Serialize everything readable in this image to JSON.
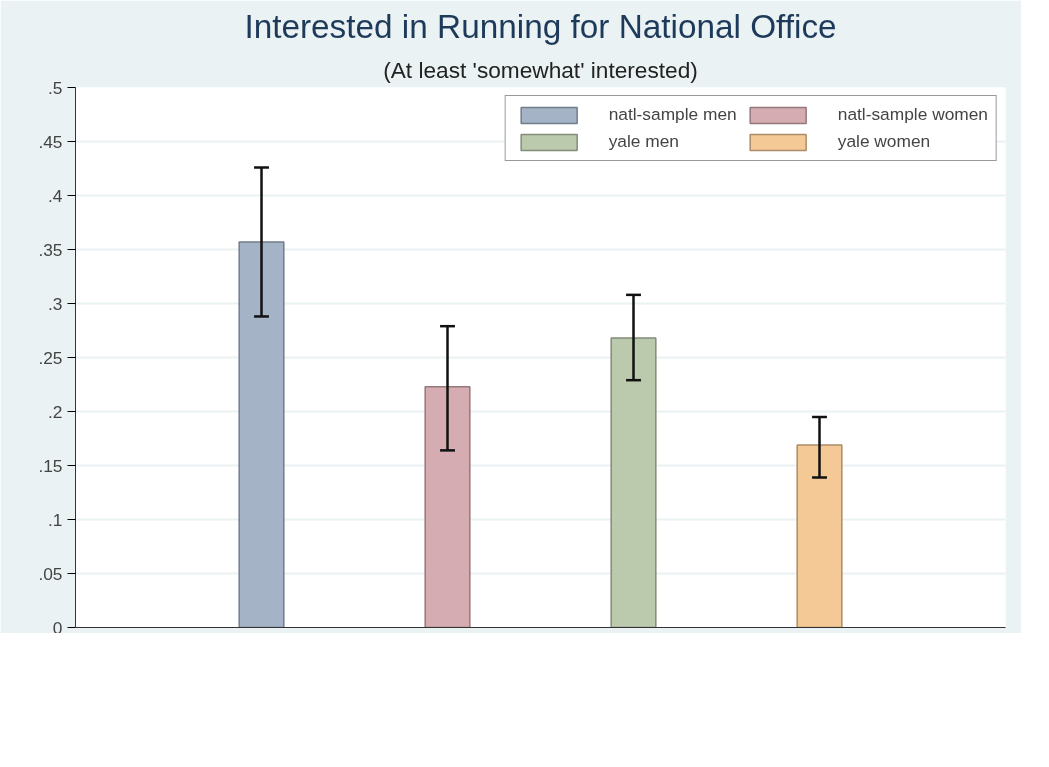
{
  "chart_data": {
    "type": "bar",
    "title": "Interested in Running for National Office",
    "subtitle": "(At least 'somewhat' interested)",
    "categories": [
      null,
      null,
      null,
      null
    ],
    "series": [
      {
        "name": "natl-sample men",
        "color": "#a4b4c6",
        "values": [
          0.357,
          null,
          null,
          null
        ],
        "errors": [
          [
            0.288,
            0.426
          ],
          null,
          null,
          null
        ]
      },
      {
        "name": "natl-sample women",
        "color": "#d4acb1",
        "values": [
          null,
          0.223,
          null,
          null
        ],
        "errors": [
          null,
          [
            0.164,
            0.279
          ],
          null,
          null
        ]
      },
      {
        "name": "yale men",
        "color": "#bbc9ad",
        "values": [
          null,
          null,
          0.268,
          null
        ],
        "errors": [
          null,
          null,
          [
            0.229,
            0.308
          ],
          null
        ]
      },
      {
        "name": "yale women",
        "color": "#f4c995",
        "values": [
          null,
          null,
          null,
          0.169
        ],
        "errors": [
          null,
          null,
          null,
          [
            0.139,
            0.195
          ]
        ]
      }
    ],
    "ylim": [
      0,
      0.5
    ],
    "yticks": [
      {
        "value": 0,
        "label": "0"
      },
      {
        "value": 0.05,
        "label": ".05"
      },
      {
        "value": 0.1,
        "label": ".1"
      },
      {
        "value": 0.15,
        "label": ".15"
      },
      {
        "value": 0.2,
        "label": ".2"
      },
      {
        "value": 0.25,
        "label": ".25"
      },
      {
        "value": 0.3,
        "label": ".3"
      },
      {
        "value": 0.35,
        "label": ".35"
      },
      {
        "value": 0.4,
        "label": ".4"
      },
      {
        "value": 0.45,
        "label": ".45"
      },
      {
        "value": 0.5,
        "label": ".5"
      }
    ],
    "grid": "y",
    "legend": "top right"
  }
}
